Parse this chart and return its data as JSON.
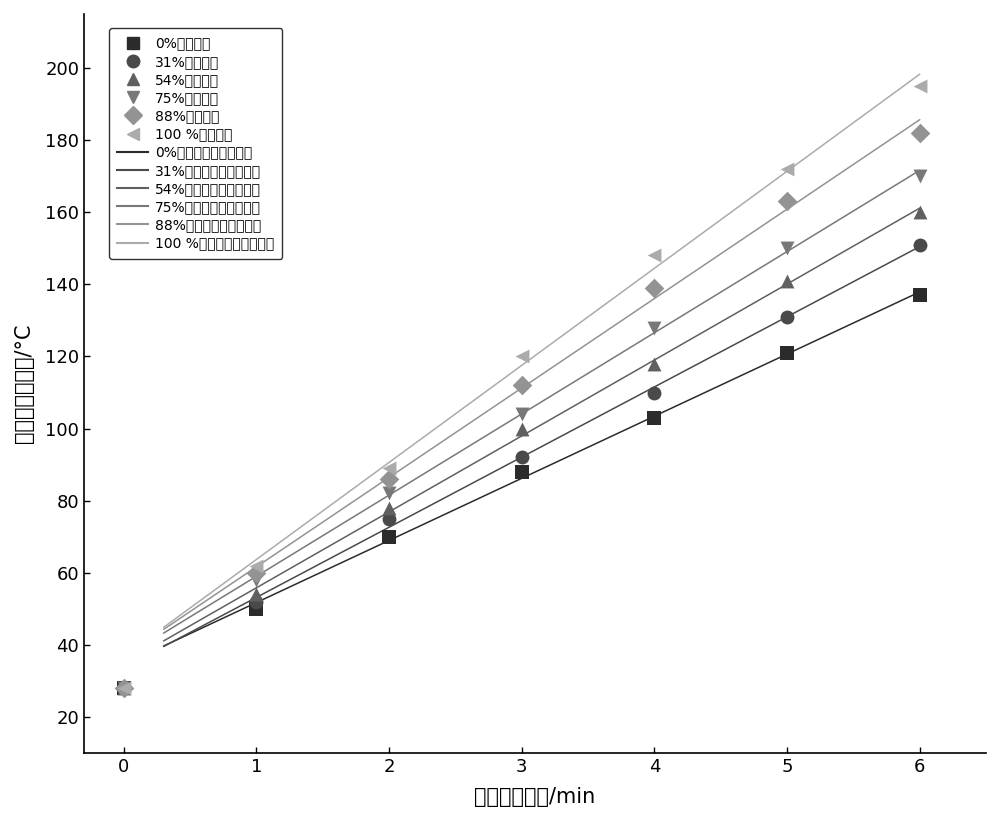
{
  "series": [
    {
      "label": "0%磁铁矿粉",
      "fit_label": "0%磁铁矿粉的线形拟合",
      "x": [
        0,
        1,
        2,
        3,
        4,
        5,
        6
      ],
      "y": [
        28,
        50,
        70,
        88,
        103,
        121,
        137
      ],
      "color": "#2b2b2b",
      "marker": "s",
      "marker_size": 10
    },
    {
      "label": "31%磁铁矿粉",
      "fit_label": "31%磁铁矿粉的线形拟合",
      "x": [
        0,
        1,
        2,
        3,
        4,
        5,
        6
      ],
      "y": [
        28,
        52,
        75,
        92,
        110,
        131,
        151
      ],
      "color": "#4a4a4a",
      "marker": "o",
      "marker_size": 10
    },
    {
      "label": "54%磁铁矿粉",
      "fit_label": "54%磁铁矿粉的线形拟合",
      "x": [
        0,
        1,
        2,
        3,
        4,
        5,
        6
      ],
      "y": [
        28,
        54,
        78,
        100,
        118,
        141,
        160
      ],
      "color": "#606060",
      "marker": "^",
      "marker_size": 10
    },
    {
      "label": "75%磁铁矿粉",
      "fit_label": "75%磁铁矿粉的线形拟合",
      "x": [
        0,
        1,
        2,
        3,
        4,
        5,
        6
      ],
      "y": [
        28,
        58,
        82,
        104,
        128,
        150,
        170
      ],
      "color": "#787878",
      "marker": "v",
      "marker_size": 10
    },
    {
      "label": "88%磁铁矿粉",
      "fit_label": "88%磁铁矿粉的线形拟合",
      "x": [
        0,
        1,
        2,
        3,
        4,
        5,
        6
      ],
      "y": [
        28,
        60,
        86,
        112,
        139,
        163,
        182
      ],
      "color": "#939393",
      "marker": "D",
      "marker_size": 10
    },
    {
      "label": "100 %磁铁矿粉",
      "fit_label": "100 %磁铁矿粉的线形拟合",
      "x": [
        0,
        1,
        2,
        3,
        4,
        5,
        6
      ],
      "y": [
        28,
        62,
        89,
        120,
        148,
        172,
        195
      ],
      "color": "#ababab",
      "marker": "<",
      "marker_size": 10
    }
  ],
  "xlabel": "微波加热时间/min",
  "ylabel": "氥青混合料温度/°C",
  "xlim": [
    -0.3,
    6.5
  ],
  "ylim": [
    10,
    215
  ],
  "xticks": [
    0,
    1,
    2,
    3,
    4,
    5,
    6
  ],
  "yticks": [
    20,
    40,
    60,
    80,
    100,
    120,
    140,
    160,
    180,
    200
  ],
  "figsize": [
    10.0,
    8.21
  ],
  "dpi": 100,
  "legend_labels_scatter": [
    "0%磁铁矿粉",
    "31%磁铁矿粉",
    "54%磁铁矿粉",
    "75%磁铁矿粉",
    "88%磁铁矿粉",
    "100 %磁铁矿粉"
  ],
  "legend_labels_fit": [
    "0%磁铁矿粉的线形拟合",
    "31%磁铁矿粉的线形拟合",
    "54%磁铁矿粉的线形拟合",
    "75%磁铁矿粉的线形拟合",
    "88%磁铁矿粉的线形拟合",
    "100 %磁铁矿粉的线形拟合"
  ]
}
